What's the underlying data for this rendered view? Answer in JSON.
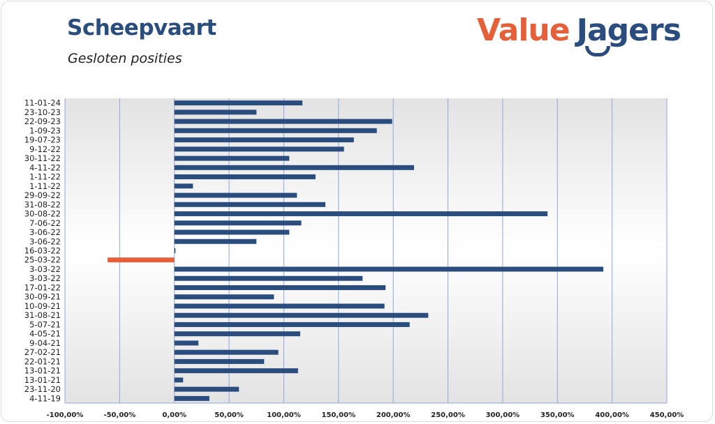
{
  "header": {
    "title": "Scheepvaart",
    "subtitle": "Gesloten posities"
  },
  "logo": {
    "part1": "Value",
    "part2": "Jagers",
    "colors": {
      "part1": "#e4603a",
      "part2": "#2b4d7e"
    }
  },
  "chart_data": {
    "type": "bar",
    "orientation": "horizontal",
    "categories": [
      "11-01-24",
      "23-10-23",
      "22-09-23",
      "1-09-23",
      "19-07-23",
      "9-12-22",
      "30-11-22",
      "4-11-22",
      "1-11-22",
      "1-11-22",
      "29-09-22",
      "31-08-22",
      "30-08-22",
      "7-06-22",
      "3-06-22",
      "3-06-22",
      "16-03-22",
      "25-03-22",
      "3-03-22",
      "3-03-22",
      "17-01-22",
      "30-09-21",
      "10-09-21",
      "31-08-21",
      "5-07-21",
      "4-05-21",
      "9-04-21",
      "27-02-21",
      "22-01-21",
      "13-01-21",
      "13-01-21",
      "23-11-20",
      "4-11-19"
    ],
    "values": [
      117,
      75,
      199,
      185,
      164,
      155,
      105,
      219,
      129,
      17,
      112,
      138,
      341,
      116,
      105,
      75,
      1,
      -61,
      392,
      172,
      193,
      91,
      192,
      232,
      215,
      115,
      22,
      95,
      82,
      113,
      8,
      59,
      32
    ],
    "xlim": [
      -100,
      450
    ],
    "xticks": [
      -100,
      -50,
      0,
      50,
      100,
      150,
      200,
      250,
      300,
      350,
      400,
      450
    ],
    "xtick_labels": [
      "-100,00%",
      "-50,00%",
      "0,00%",
      "50,00%",
      "100,00%",
      "150,00%",
      "200,00%",
      "250,00%",
      "300,00%",
      "350,00%",
      "400,00%",
      "450,00%"
    ],
    "grid": "vertical",
    "colors": {
      "positive": "#2b4d7e",
      "negative": "#e4603a",
      "grid": "#8fa6dc"
    }
  }
}
